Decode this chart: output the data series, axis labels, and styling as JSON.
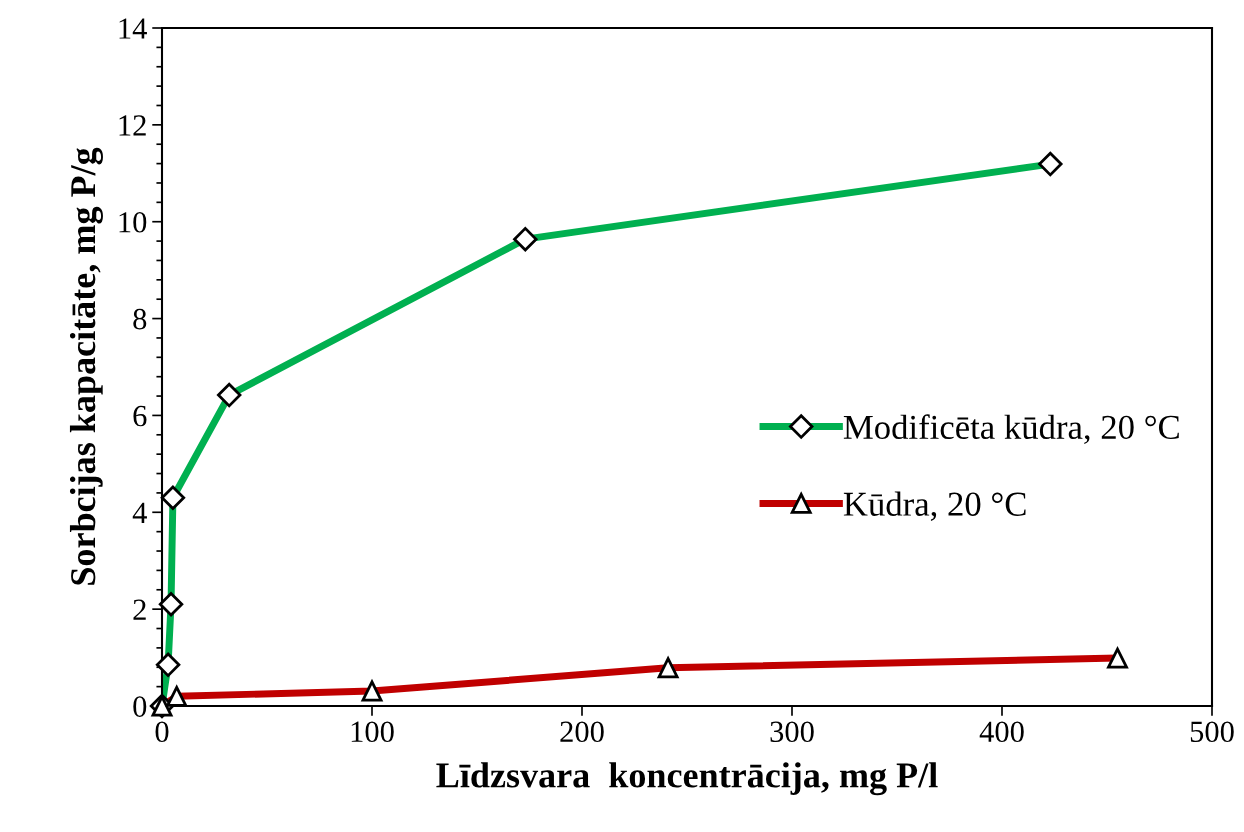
{
  "chart_data": {
    "type": "line",
    "xlabel": "Līdzsvara  koncentrācija, mg P/l",
    "ylabel": "Sorbcijas kapacitāte, mg P/g",
    "xlim": [
      0,
      500
    ],
    "xticks": [
      0,
      100,
      200,
      300,
      400,
      500
    ],
    "ylim": [
      0,
      14
    ],
    "yticks": [
      0,
      2,
      4,
      6,
      8,
      10,
      12,
      14
    ],
    "grid": false,
    "legend": "right",
    "line_style": "solid",
    "series": [
      {
        "name": "Modificēta kūdra, 20 °C",
        "color": "#00b050",
        "marker": "diamond",
        "x": [
          0,
          2.9,
          4.3,
          5.2,
          32,
          173,
          423
        ],
        "values": [
          0,
          0.85,
          2.1,
          4.3,
          6.42,
          9.64,
          11.19
        ]
      },
      {
        "name": "Kūdra, 20 °C",
        "color": "#c00000",
        "marker": "triangle",
        "x": [
          0,
          7,
          100,
          241,
          455
        ],
        "values": [
          0,
          0.2,
          0.31,
          0.79,
          0.99
        ]
      }
    ]
  }
}
